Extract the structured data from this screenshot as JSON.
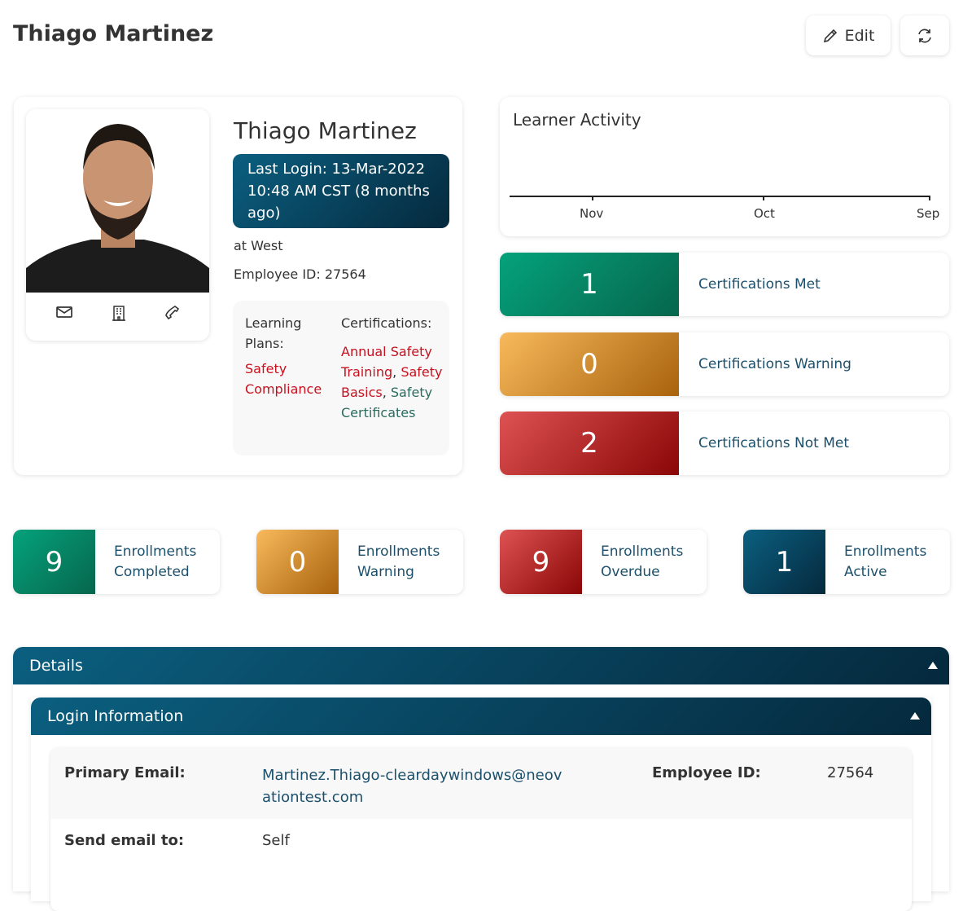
{
  "page": {
    "title": "Thiago Martinez",
    "edit_label": "Edit",
    "edit_icon": "pencil-icon",
    "refresh_icon": "refresh-icon"
  },
  "profile": {
    "name": "Thiago Martinez",
    "last_login": "Last Login: 13-Mar-2022 10:48 AM CST (8 months ago)",
    "location": "at West",
    "employee_id": "Employee ID: 27564",
    "contact_icons": [
      "envelope-icon",
      "building-icon",
      "phone-icon"
    ],
    "learning_plans_label": "Learning Plans:",
    "learning_plans": [
      "Safety Compliance"
    ],
    "certifications_label": "Certifications:",
    "certifications": [
      {
        "name": "Annual Safety Training",
        "status": "red"
      },
      {
        "name": "Safety Basics",
        "status": "red"
      },
      {
        "name": "Safety Certificates",
        "status": "teal"
      }
    ]
  },
  "activity": {
    "title": "Learner Activity",
    "ticks": [
      "Nov",
      "Oct",
      "Sep"
    ]
  },
  "certs": [
    {
      "value": "1",
      "label": "Certifications Met"
    },
    {
      "value": "0",
      "label": "Certifications Warning"
    },
    {
      "value": "2",
      "label": "Certifications Not Met"
    }
  ],
  "enrollments": [
    {
      "value": "9",
      "label": "Enrollments Completed"
    },
    {
      "value": "0",
      "label": "Enrollments Warning"
    },
    {
      "value": "9",
      "label": "Enrollments Overdue"
    },
    {
      "value": "1",
      "label": "Enrollments Active"
    }
  ],
  "details": {
    "title": "Details",
    "login_title": "Login Information",
    "rows": [
      {
        "label": "Primary Email:",
        "value": "Martinez.Thiago-cleardaywindows@neovationtest.com",
        "label2": "Employee ID:",
        "value2": "27564"
      },
      {
        "label": "Send email to:",
        "value": "Self"
      }
    ]
  },
  "colors": {
    "met": "#05a27c",
    "warning": "#f8b95c",
    "not_met": "#de5252",
    "active": "#0b5f80"
  }
}
